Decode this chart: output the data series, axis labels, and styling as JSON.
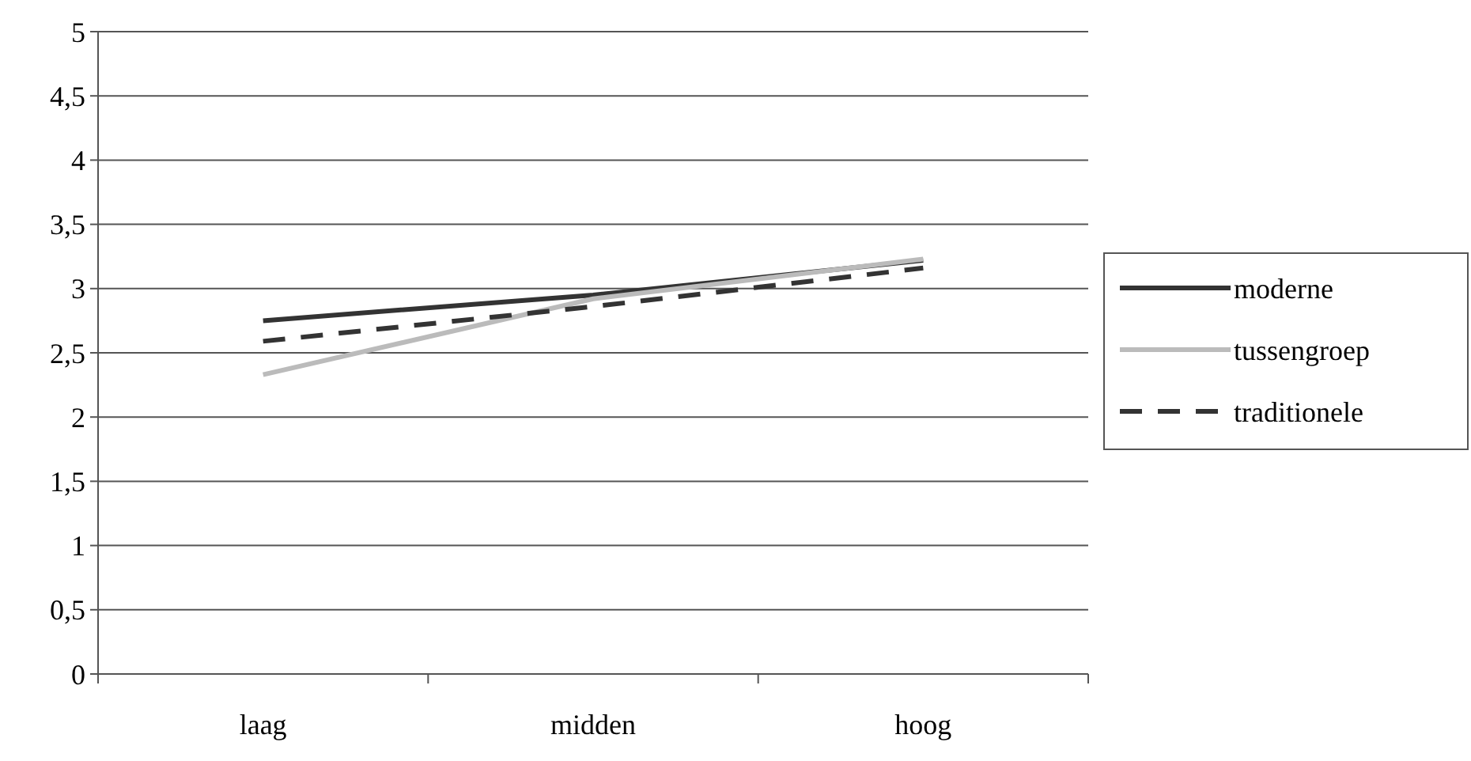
{
  "chart_data": {
    "type": "line",
    "categories": [
      "laag",
      "midden",
      "hoog"
    ],
    "series": [
      {
        "name": "moderne",
        "color": "#333333",
        "values": [
          2.75,
          2.95,
          3.22
        ],
        "line_style": "solid"
      },
      {
        "name": "tussengroep",
        "color": "#bbbbbb",
        "values": [
          2.33,
          2.92,
          3.23
        ],
        "line_style": "solid"
      },
      {
        "name": "traditionele",
        "color": "#333333",
        "values": [
          2.59,
          2.86,
          3.16
        ],
        "line_style": "dashed"
      }
    ],
    "ylim": [
      0,
      5
    ],
    "yticks": [
      0,
      {
        "value": 0.5,
        "label": "0,5"
      },
      1,
      {
        "value": 1.5,
        "label": "1,5"
      },
      2,
      {
        "value": 2.5,
        "label": "2,5"
      },
      3,
      {
        "value": 3.5,
        "label": "3,5"
      },
      4,
      {
        "value": 4.5,
        "label": "4,5"
      },
      5
    ],
    "grid": "y",
    "legend": "right",
    "marker": "none"
  }
}
